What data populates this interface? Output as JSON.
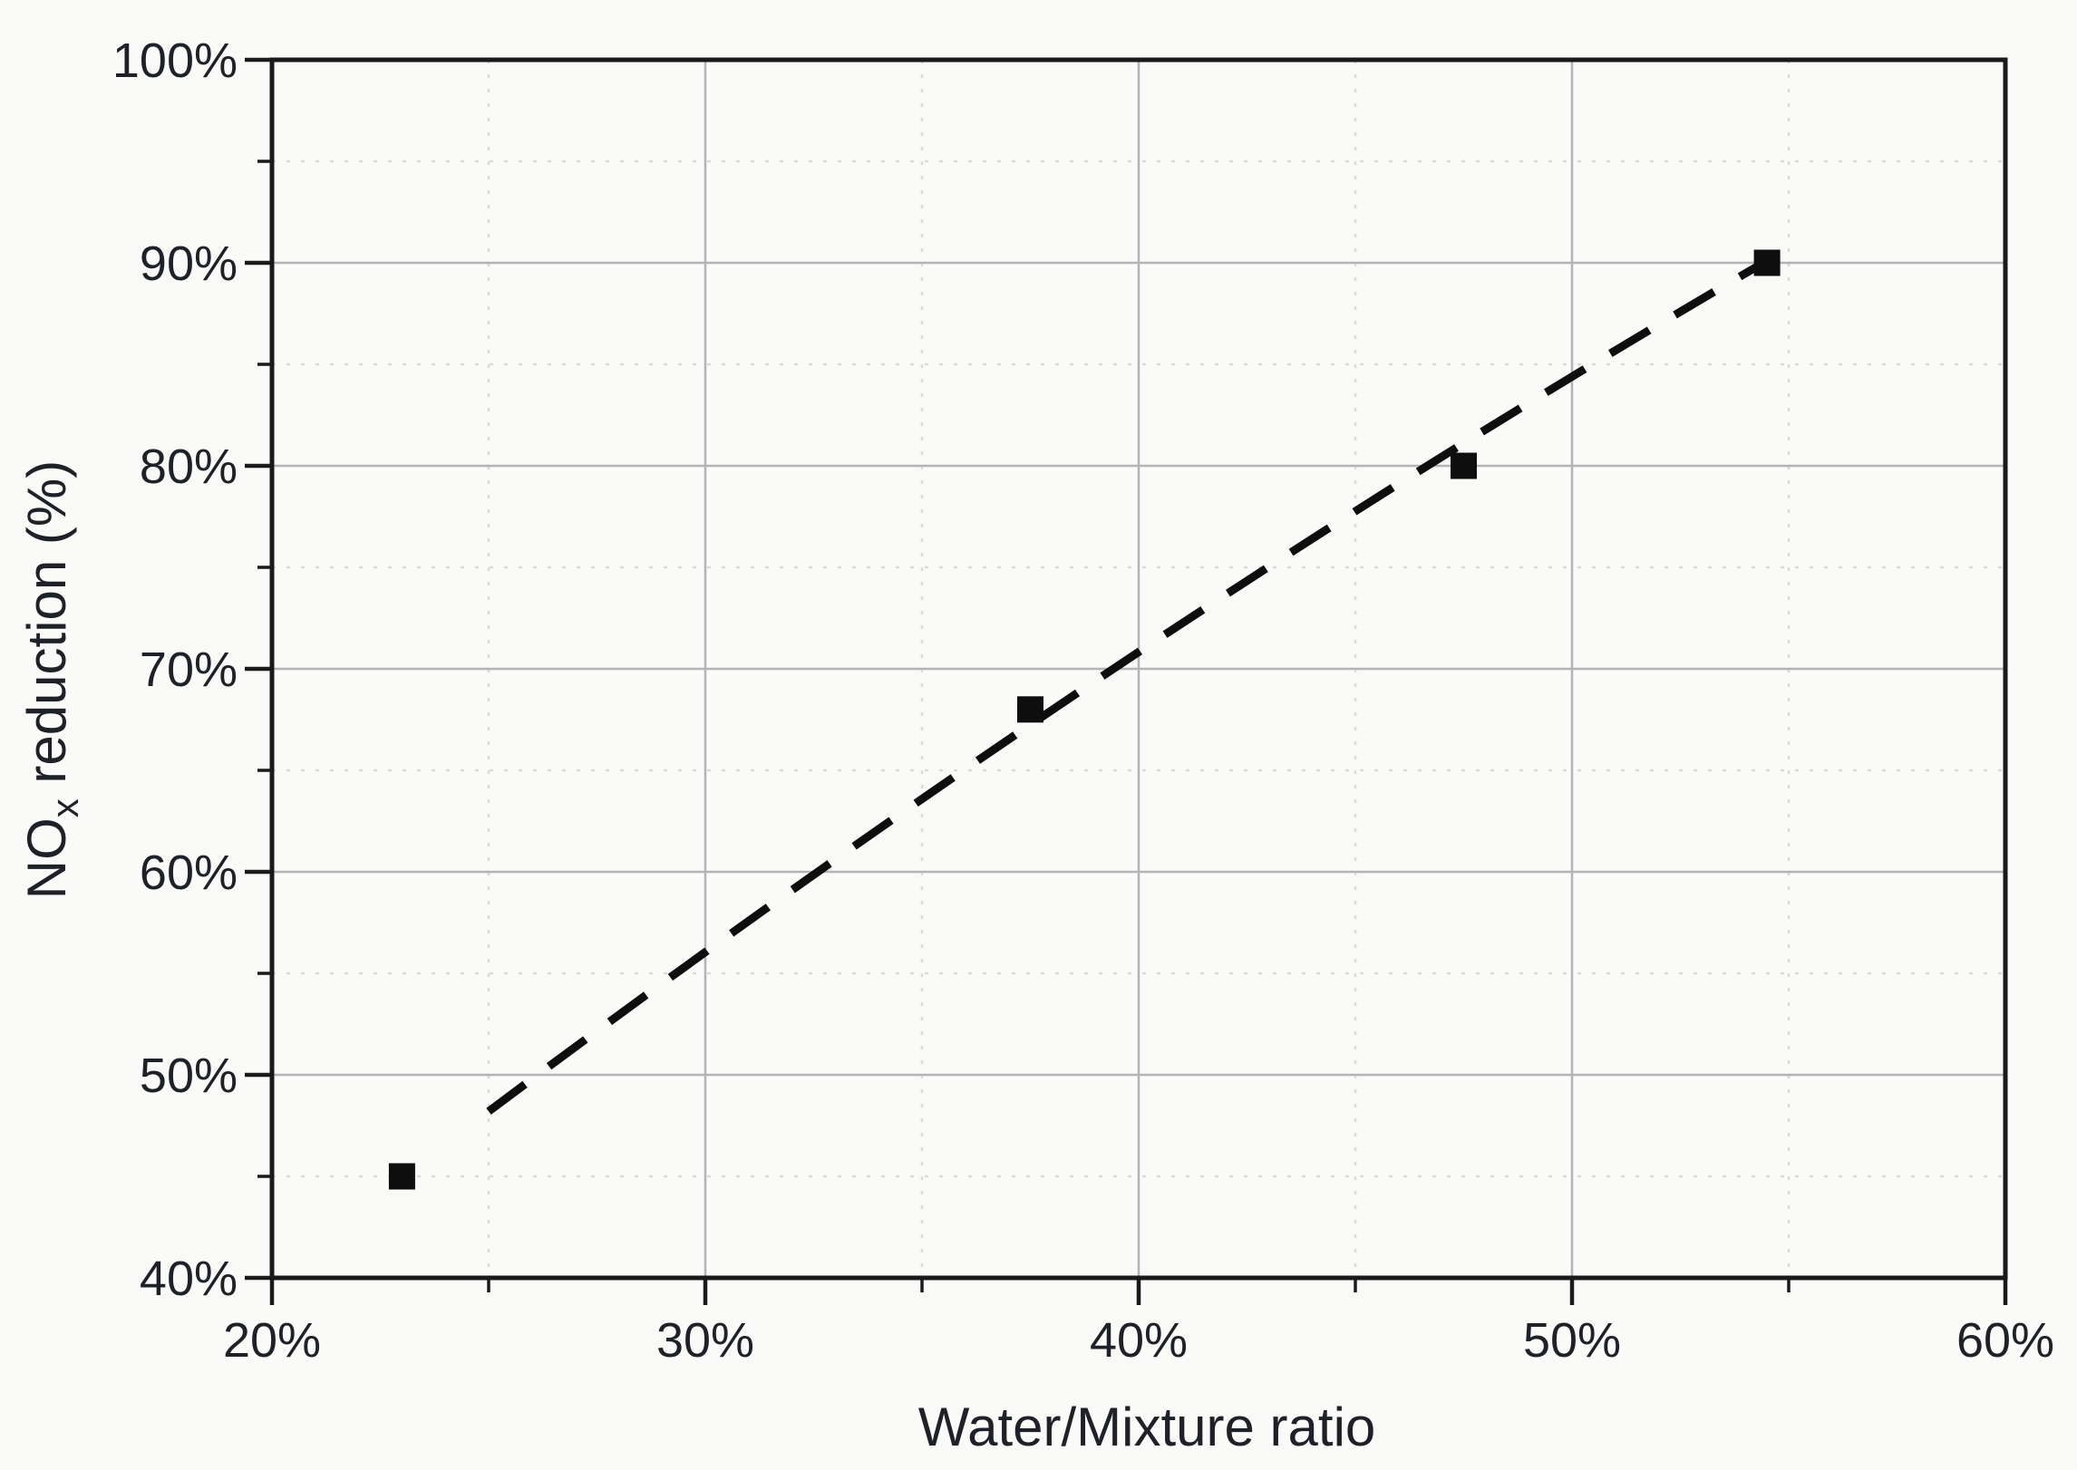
{
  "chart_data": {
    "type": "scatter",
    "title": "",
    "xlabel": "Water/Mixture ratio",
    "ylabel": "NOx reduction (%)",
    "xlabel_parts": [
      {
        "text": "Water/Mixture ratio",
        "sub": false
      }
    ],
    "ylabel_parts": [
      {
        "text": "NO",
        "sub": false
      },
      {
        "text": "x",
        "sub": true
      },
      {
        "text": " reduction (%)",
        "sub": false
      }
    ],
    "xlim": [
      20,
      60
    ],
    "ylim": [
      40,
      100
    ],
    "x_major_ticks": [
      20,
      30,
      40,
      50,
      60
    ],
    "x_minor_ticks": [
      25,
      35,
      45,
      55
    ],
    "x_tick_labels": [
      "20%",
      "30%",
      "40%",
      "50%",
      "60%"
    ],
    "y_major_ticks": [
      40,
      50,
      60,
      70,
      80,
      90,
      100
    ],
    "y_minor_ticks": [
      45,
      55,
      65,
      75,
      85,
      95
    ],
    "y_tick_labels": [
      "40%",
      "50%",
      "60%",
      "70%",
      "80%",
      "90%",
      "100%"
    ],
    "grid": {
      "major": true,
      "minor": true,
      "minor_style": "dotted"
    },
    "legend": "none",
    "series": [
      {
        "name": "NOx reduction",
        "marker": "filled-square",
        "points": [
          {
            "x": 23,
            "y": 45
          },
          {
            "x": 37.5,
            "y": 68
          },
          {
            "x": 47.5,
            "y": 80
          },
          {
            "x": 54.5,
            "y": 90
          }
        ]
      }
    ],
    "trendline": {
      "style": "dashed",
      "curve": "quadratic",
      "points": [
        {
          "x": 25,
          "y": 48.2
        },
        {
          "x": 39.75,
          "y": 71.8
        },
        {
          "x": 54.5,
          "y": 90.1
        }
      ]
    }
  },
  "colors": {
    "marker": "#0e0e0e",
    "trendline": "#0e0e0e",
    "axis": "#1a1a1a",
    "tick_text": "#1e2128",
    "major_grid": "#b3b4b4",
    "minor_grid": "#d9dada",
    "background": "#fafaf9"
  }
}
